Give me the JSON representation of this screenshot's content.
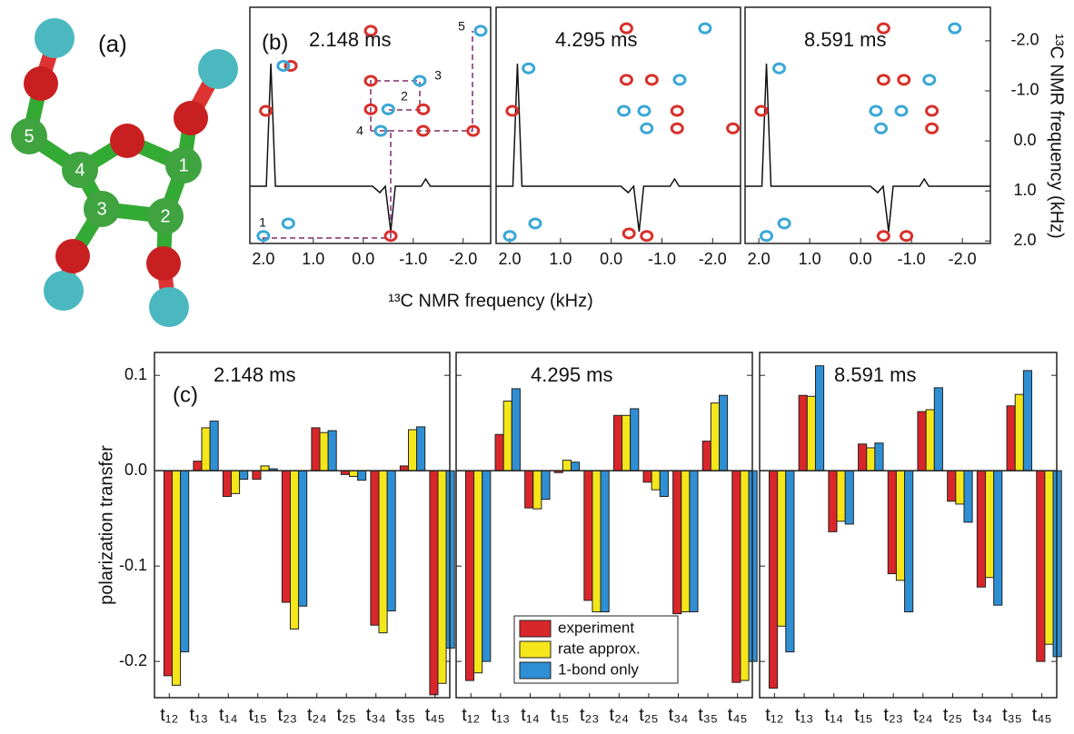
{
  "panel_a": {
    "label": "(a)",
    "atom_labels": [
      "1",
      "2",
      "3",
      "4",
      "5"
    ]
  },
  "panel_b": {
    "label": "(b)",
    "xlabel": "¹³C NMR frequency (kHz)",
    "ylabel": "¹³C NMR frequency (kHz)",
    "site_labels": [
      "1",
      "2",
      "3",
      "4",
      "5"
    ],
    "spectra": [
      {
        "type": "scatter",
        "title": "2.148 ms",
        "xlim": [
          2.27,
          -2.55
        ],
        "ylim": [
          -2.67,
          2.05
        ],
        "xticks": [
          {
            "value": 2,
            "label": "2.0"
          },
          {
            "value": 1,
            "label": "1.0"
          },
          {
            "value": 0,
            "label": "0.0"
          },
          {
            "value": -1,
            "label": "-1.0"
          },
          {
            "value": -2,
            "label": "-2.0"
          }
        ],
        "series": [
          {
            "color": "#d7302a",
            "x": [
              1.95,
              -0.55,
              -0.15,
              -1.2,
              -1.2,
              -2.2,
              -0.15,
              -0.15,
              1.45
            ],
            "values": [
              -0.6,
              1.9,
              -1.2,
              -0.63,
              -0.2,
              -0.2,
              -2.2,
              -0.63,
              -1.5
            ]
          },
          {
            "color": "#3ba7d6",
            "x": [
              2.0,
              -0.5,
              -1.13,
              -0.35,
              -2.35,
              1.6,
              1.5
            ],
            "values": [
              1.9,
              -0.63,
              -1.2,
              -0.2,
              -2.2,
              -1.5,
              1.65
            ]
          }
        ]
      },
      {
        "type": "scatter",
        "title": "4.295 ms",
        "xlim": [
          2.27,
          -2.55
        ],
        "ylim": [
          -2.67,
          2.05
        ],
        "xticks": [
          {
            "value": 2,
            "label": "2.0"
          },
          {
            "value": 1,
            "label": "1.0"
          },
          {
            "value": 0,
            "label": "0.0"
          },
          {
            "value": -1,
            "label": "-1.0"
          },
          {
            "value": -2,
            "label": "-2.0"
          }
        ],
        "series": [
          {
            "color": "#d7302a",
            "x": [
              -0.3,
              -0.3,
              -0.8,
              -1.3,
              -1.3,
              -2.4,
              -0.7,
              -0.35,
              1.95
            ],
            "values": [
              -2.25,
              -1.22,
              -1.22,
              -0.6,
              -0.25,
              -0.25,
              1.9,
              1.85,
              -0.6
            ]
          },
          {
            "color": "#3ba7d6",
            "x": [
              -1.85,
              -1.35,
              -0.65,
              -0.25,
              -0.7,
              2.0,
              1.63,
              1.5
            ],
            "values": [
              -2.25,
              -1.22,
              -0.6,
              -0.6,
              -0.25,
              1.9,
              -1.45,
              1.65
            ]
          }
        ]
      },
      {
        "type": "scatter",
        "title": "8.591 ms",
        "xlim": [
          2.27,
          -2.55
        ],
        "ylim": [
          -2.67,
          2.05
        ],
        "xticks": [
          {
            "value": 2,
            "label": "2.0"
          },
          {
            "value": 1,
            "label": "1.0"
          },
          {
            "value": 0,
            "label": "0.0"
          },
          {
            "value": -1,
            "label": "-1.0"
          },
          {
            "value": -2,
            "label": "-2.0"
          }
        ],
        "yticks": [
          {
            "value": -2,
            "label": "-2.0"
          },
          {
            "value": -1,
            "label": "-1.0"
          },
          {
            "value": 0,
            "label": "0.0"
          },
          {
            "value": 1,
            "label": "1.0"
          },
          {
            "value": 2,
            "label": "2.0"
          }
        ],
        "series": [
          {
            "color": "#d7302a",
            "x": [
              -0.45,
              -0.45,
              -0.85,
              -1.4,
              -1.4,
              -0.45,
              -0.9,
              1.95
            ],
            "values": [
              -2.25,
              -1.22,
              -1.22,
              -0.6,
              -0.25,
              1.9,
              1.9,
              -0.6
            ]
          },
          {
            "color": "#3ba7d6",
            "x": [
              -1.85,
              -1.35,
              -0.3,
              -0.8,
              -0.4,
              1.85,
              1.6,
              1.5
            ],
            "values": [
              -2.25,
              -1.22,
              -0.6,
              -0.6,
              -0.25,
              1.9,
              -1.45,
              1.65
            ]
          }
        ]
      }
    ]
  },
  "chart_data": [
    {
      "type": "bar",
      "title": "2.148 ms",
      "annotations": [
        "(c)"
      ],
      "ylabel": "polarization transfer",
      "categories": [
        "t₁₂",
        "t₁₃",
        "t₁₄",
        "t₁₅",
        "t₂₃",
        "t₂₄",
        "t₂₅",
        "t₃₄",
        "t₃₅",
        "t₄₅"
      ],
      "ylim": [
        -0.238,
        0.124
      ],
      "yticks": [
        0.1,
        {
          "value": 0,
          "label": "0.0"
        },
        -0.1,
        -0.2
      ],
      "series": [
        {
          "name": "experiment",
          "color": "#d9262b",
          "values": [
            -0.215,
            0.01,
            -0.027,
            -0.009,
            -0.138,
            0.045,
            -0.004,
            -0.162,
            0.005,
            -0.235
          ]
        },
        {
          "name": "rate approx.",
          "color": "#f5e61a",
          "values": [
            -0.225,
            0.045,
            -0.024,
            0.005,
            -0.166,
            0.04,
            -0.006,
            -0.17,
            0.043,
            -0.223
          ]
        },
        {
          "name": "1-bond only",
          "color": "#2f8fd4",
          "values": [
            -0.19,
            0.052,
            -0.009,
            0.002,
            -0.142,
            0.042,
            -0.01,
            -0.147,
            0.046,
            -0.186
          ]
        }
      ]
    },
    {
      "type": "bar",
      "title": "4.295 ms",
      "legend": "lower right",
      "categories": [
        "t₁₂",
        "t₁₃",
        "t₁₄",
        "t₁₅",
        "t₂₃",
        "t₂₄",
        "t₂₅",
        "t₃₄",
        "t₃₅",
        "t₄₅"
      ],
      "ylim": [
        -0.238,
        0.124
      ],
      "series": [
        {
          "name": "experiment",
          "color": "#d9262b",
          "values": [
            -0.22,
            0.038,
            -0.039,
            -0.002,
            -0.136,
            0.058,
            -0.012,
            -0.15,
            0.031,
            -0.222
          ]
        },
        {
          "name": "rate approx.",
          "color": "#f5e61a",
          "values": [
            -0.212,
            0.073,
            -0.04,
            0.011,
            -0.148,
            0.058,
            -0.02,
            -0.148,
            0.071,
            -0.22
          ]
        },
        {
          "name": "1-bond only",
          "color": "#2f8fd4",
          "values": [
            -0.2,
            0.086,
            -0.03,
            0.009,
            -0.148,
            0.065,
            -0.027,
            -0.148,
            0.079,
            -0.2
          ]
        }
      ]
    },
    {
      "type": "bar",
      "title": "8.591 ms",
      "categories": [
        "t₁₂",
        "t₁₃",
        "t₁₄",
        "t₁₅",
        "t₂₃",
        "t₂₄",
        "t₂₅",
        "t₃₄",
        "t₃₅",
        "t₄₅"
      ],
      "ylim": [
        -0.238,
        0.124
      ],
      "series": [
        {
          "name": "experiment",
          "color": "#d9262b",
          "values": [
            -0.228,
            0.079,
            -0.064,
            0.028,
            -0.108,
            0.062,
            -0.032,
            -0.122,
            0.068,
            -0.2
          ]
        },
        {
          "name": "rate approx.",
          "color": "#f5e61a",
          "values": [
            -0.163,
            0.078,
            -0.053,
            0.024,
            -0.115,
            0.064,
            -0.035,
            -0.112,
            0.08,
            -0.182
          ]
        },
        {
          "name": "1-bond only",
          "color": "#2f8fd4",
          "values": [
            -0.19,
            0.11,
            -0.056,
            0.029,
            -0.148,
            0.087,
            -0.054,
            -0.141,
            0.105,
            -0.195
          ]
        }
      ]
    }
  ]
}
